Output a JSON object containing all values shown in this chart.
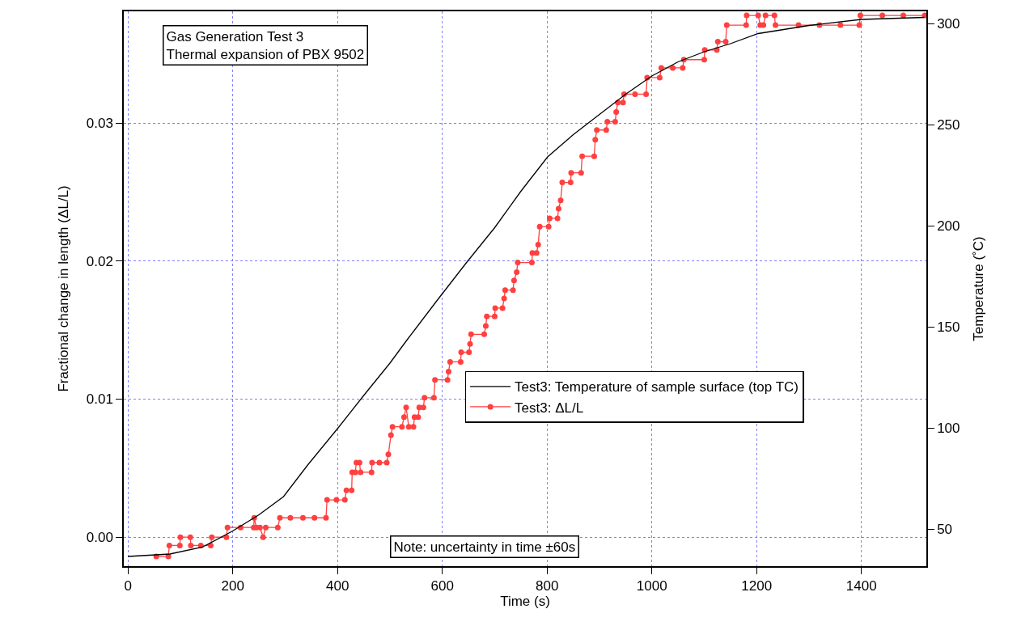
{
  "chart_data": {
    "type": "line",
    "xlabel": "Time (s)",
    "ylabel": "Fractional change in length (ΔL/L)",
    "y2label": "Temperature (˚C)",
    "annotations": [
      "Gas Generation Test 3\nThermal expansion of PBX 9502",
      "Note: uncertainty in time ±60s"
    ],
    "xlim": [
      -8,
      1524
    ],
    "xticks": [
      0,
      200,
      400,
      600,
      800,
      1000,
      1200,
      1400
    ],
    "ylim": [
      -0.0021,
      0.0381
    ],
    "yticks": [
      {
        "value": 0,
        "label": "0.00"
      },
      {
        "value": 0.01,
        "label": "0.01"
      },
      {
        "value": 0.02,
        "label": "0.02"
      },
      {
        "value": 0.03,
        "label": "0.03"
      }
    ],
    "y2lim": [
      31.6,
      306
    ],
    "y2ticks": [
      50,
      100,
      150,
      200,
      250,
      300
    ],
    "grid": true,
    "legend": "right",
    "series": [
      {
        "name": "Test3: Temperature of sample surface (top TC)",
        "color": "#000000",
        "axis": "y2",
        "marker": "none",
        "line_style": "solid",
        "x": [
          0,
          80,
          142,
          200,
          250,
          297,
          343,
          400,
          450,
          500,
          533,
          590,
          647,
          700,
          750,
          801,
          850,
          900,
          950,
          1000,
          1050,
          1100,
          1150,
          1203,
          1300,
          1400,
          1520
        ],
        "values": [
          36.4,
          37.6,
          41,
          49,
          57,
          66,
          81.6,
          99.6,
          116,
          132,
          143.6,
          163,
          182,
          199,
          217,
          234,
          245,
          255,
          265,
          274,
          281,
          286,
          290,
          295,
          299,
          302,
          303
        ]
      },
      {
        "name": "Test3: ΔL/L",
        "color": "#ff4040",
        "axis": "y",
        "marker": "circle",
        "line_style": "solid",
        "x": [
          54,
          77,
          79,
          99,
          100,
          119,
          120,
          139,
          158,
          160,
          188,
          190,
          215,
          240,
          241,
          245,
          252,
          258,
          263,
          286,
          290,
          310,
          334,
          356,
          378,
          380,
          398,
          414,
          417,
          427,
          428,
          434,
          436,
          442,
          444,
          465,
          466,
          480,
          494,
          497,
          502,
          505,
          523,
          527,
          531,
          536,
          545,
          547,
          554,
          556,
          564,
          566,
          584,
          586,
          610,
          612,
          615,
          635,
          636,
          651,
          653,
          655,
          680,
          683,
          685,
          700,
          701,
          715,
          718,
          720,
          735,
          737,
          742,
          744,
          771,
          772,
          780,
          783,
          786,
          803,
          805,
          820,
          822,
          826,
          829,
          845,
          846,
          865,
          867,
          890,
          892,
          895,
          913,
          915,
          930,
          932,
          935,
          945,
          947,
          968,
          989,
          991,
          1015,
          1018,
          1040,
          1059,
          1061,
          1100,
          1101,
          1124,
          1126,
          1141,
          1143,
          1180,
          1181,
          1203,
          1207,
          1213,
          1217,
          1234,
          1236,
          1280,
          1320,
          1360,
          1396,
          1398,
          1440,
          1480,
          1521
        ],
        "values": [
          -0.0014,
          -0.0014,
          -0.0006,
          -0.0006,
          0.0,
          0.0,
          -0.0006,
          -0.0006,
          -0.0006,
          0.0,
          0.0,
          0.0007,
          0.0007,
          0.0007,
          0.0014,
          0.0007,
          0.0007,
          0.0,
          0.0007,
          0.0007,
          0.0014,
          0.0014,
          0.0014,
          0.0014,
          0.0014,
          0.0027,
          0.0027,
          0.0027,
          0.0034,
          0.0034,
          0.0047,
          0.0047,
          0.0054,
          0.0054,
          0.0047,
          0.0047,
          0.0054,
          0.0054,
          0.0054,
          0.006,
          0.0074,
          0.008,
          0.008,
          0.0087,
          0.0094,
          0.008,
          0.008,
          0.0087,
          0.0087,
          0.0094,
          0.0094,
          0.0101,
          0.0101,
          0.0114,
          0.0114,
          0.012,
          0.0127,
          0.0127,
          0.0134,
          0.0134,
          0.014,
          0.0147,
          0.0147,
          0.0153,
          0.016,
          0.016,
          0.0166,
          0.0166,
          0.0173,
          0.0179,
          0.0179,
          0.0186,
          0.0192,
          0.0199,
          0.0199,
          0.0206,
          0.0206,
          0.0212,
          0.0225,
          0.0225,
          0.0231,
          0.0231,
          0.0238,
          0.0244,
          0.0257,
          0.0257,
          0.0264,
          0.0264,
          0.0276,
          0.0276,
          0.0288,
          0.0295,
          0.0295,
          0.0301,
          0.0301,
          0.0308,
          0.0315,
          0.0315,
          0.0321,
          0.0321,
          0.0321,
          0.0333,
          0.0333,
          0.034,
          0.034,
          0.034,
          0.0346,
          0.0346,
          0.0353,
          0.0353,
          0.0359,
          0.0359,
          0.0371,
          0.0371,
          0.0378,
          0.0378,
          0.0371,
          0.0371,
          0.0378,
          0.0378,
          0.0371,
          0.0371,
          0.0371,
          0.0371,
          0.0371,
          0.0378,
          0.0378,
          0.0378,
          0.0378
        ]
      }
    ]
  }
}
